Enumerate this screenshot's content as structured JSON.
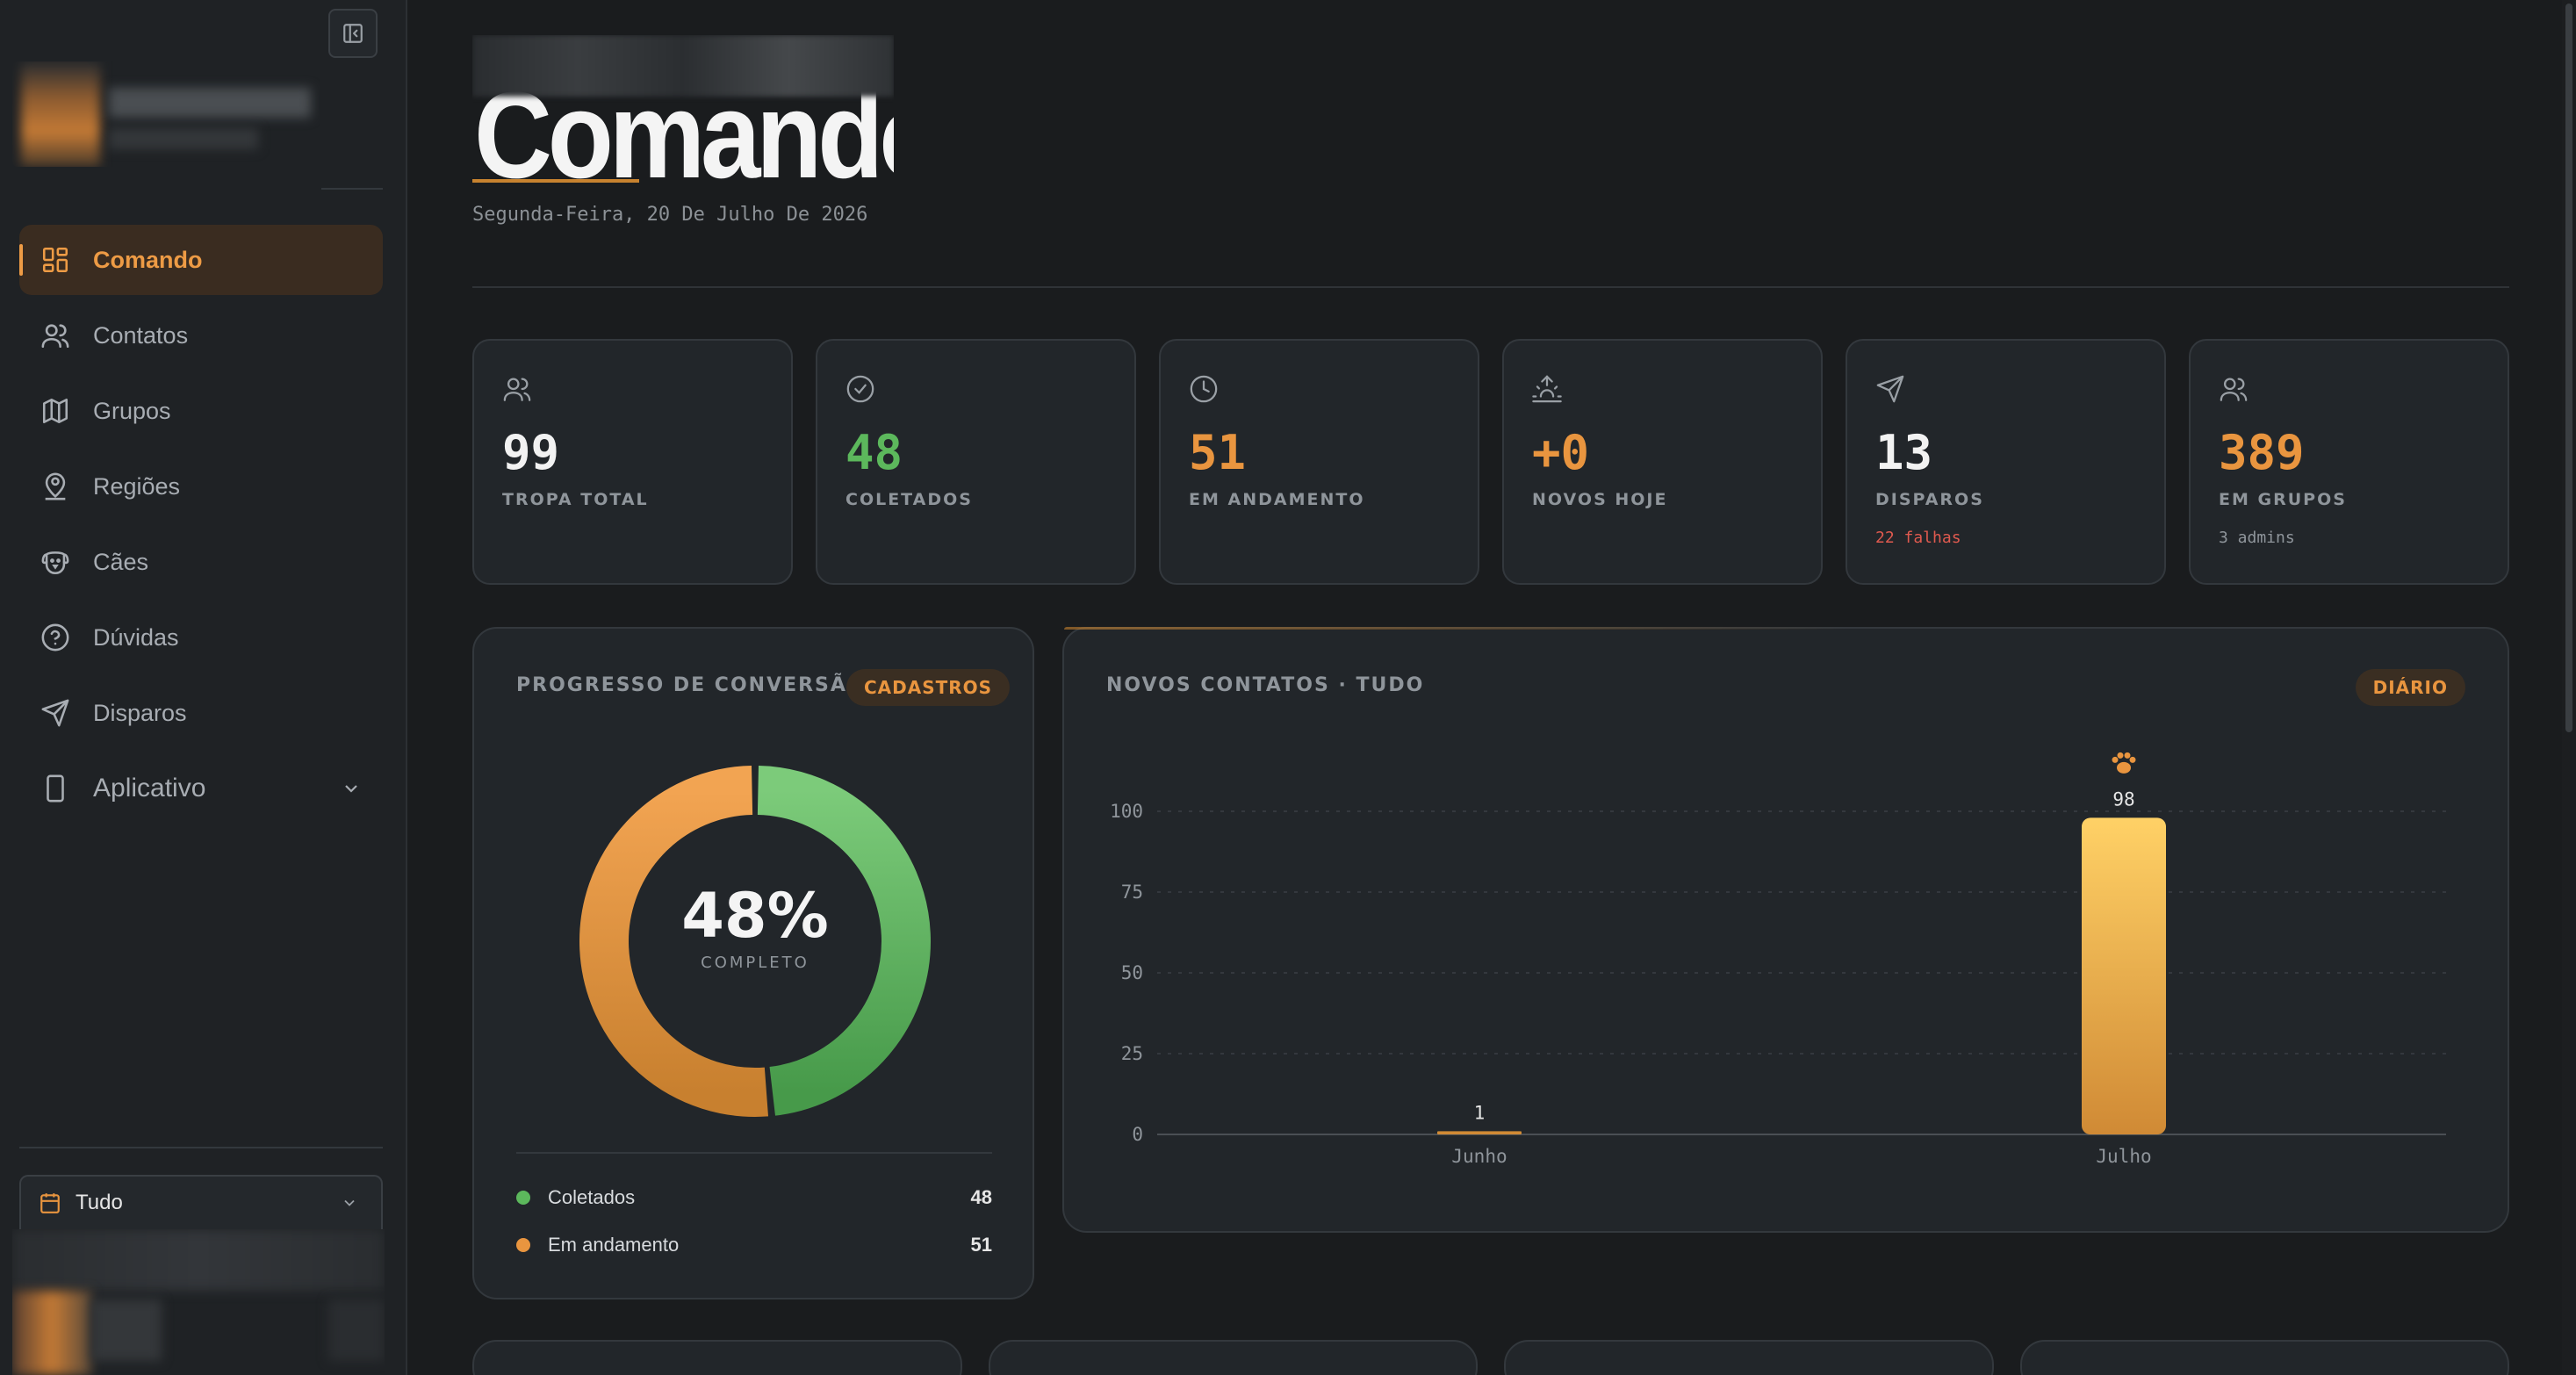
{
  "sidebar": {
    "items": [
      {
        "label": "Comando",
        "icon": "dashboard-icon",
        "active": true
      },
      {
        "label": "Contatos",
        "icon": "users-icon"
      },
      {
        "label": "Grupos",
        "icon": "map-icon"
      },
      {
        "label": "Regiões",
        "icon": "map-pin-user-icon"
      },
      {
        "label": "Cães",
        "icon": "dog-icon"
      },
      {
        "label": "Dúvidas",
        "icon": "help-circle-icon"
      },
      {
        "label": "Disparos",
        "icon": "send-icon"
      },
      {
        "label": "Aplicativo",
        "icon": "smartphone-icon"
      }
    ],
    "period": {
      "label": "Tudo"
    }
  },
  "header": {
    "title": "Comando",
    "date": "Segunda-Feira, 20 De Julho De 2026"
  },
  "stats": [
    {
      "value": "99",
      "label": "TROPA TOTAL",
      "sub": "",
      "color": "#f2f2f2",
      "icon": "users-icon"
    },
    {
      "value": "48",
      "label": "COLETADOS",
      "sub": "",
      "color": "#5cb85c",
      "icon": "check-circle-icon"
    },
    {
      "value": "51",
      "label": "EM ANDAMENTO",
      "sub": "",
      "color": "#e9953f",
      "icon": "clock-icon"
    },
    {
      "value": "+0",
      "label": "NOVOS HOJE",
      "sub": "",
      "color": "#e9953f",
      "icon": "sunrise-icon"
    },
    {
      "value": "13",
      "label": "DISPAROS",
      "sub": "22 falhas",
      "subColor": "#e05a4f",
      "color": "#f2f2f2",
      "icon": "send-icon"
    },
    {
      "value": "389",
      "label": "EM GRUPOS",
      "sub": "3 admins",
      "subColor": "#8f959b",
      "color": "#e9953f",
      "icon": "users-icon"
    }
  ],
  "conversion": {
    "title": "PROGRESSO DE CONVERSÃO",
    "badge": "CADASTROS",
    "center_value": "48%",
    "center_label": "COMPLETO",
    "legend": [
      {
        "label": "Coletados",
        "value": "48",
        "color": "#5cb85c"
      },
      {
        "label": "Em andamento",
        "value": "51",
        "color": "#e9953f"
      }
    ]
  },
  "contacts_chart": {
    "title": "NOVOS CONTATOS · TUDO",
    "badge": "DIÁRIO"
  },
  "chart_data": {
    "type": "bar",
    "categories": [
      "Junho",
      "Julho"
    ],
    "values": [
      1,
      98
    ],
    "title": "NOVOS CONTATOS · TUDO",
    "xlabel": "",
    "ylabel": "",
    "ylim": [
      0,
      100
    ],
    "yticks": [
      0,
      25,
      50,
      75,
      100
    ],
    "grid": true,
    "data_labels": [
      "1",
      "98"
    ],
    "highlight_icon": "paw-icon"
  }
}
